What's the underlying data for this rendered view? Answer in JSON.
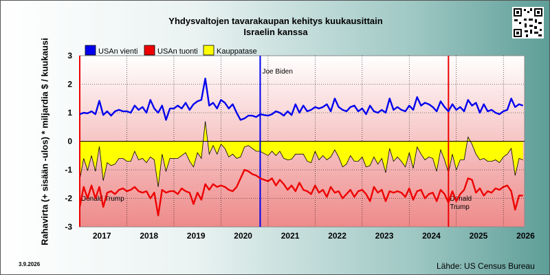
{
  "page": {
    "title_line1": "Yhdysvaltojen tavarakaupan kehitys kuukausittain",
    "title_line2": "Israelin kanssa",
    "date_stamp": "3.9.2026",
    "source": "Lähde: US Census Bureau",
    "qr_icon": "qr-code-icon"
  },
  "chart_data": {
    "type": "line",
    "ylabel": "Rahavirta (+ sisään -ulos) * miljardia $ / kuukausi",
    "ylim": [
      -3,
      3
    ],
    "yticks": [
      "3",
      "2",
      "1",
      "0",
      "-1",
      "-2",
      "-3"
    ],
    "xlim": [
      2017.0,
      2026.45
    ],
    "xticks": [
      "2017",
      "2018",
      "2019",
      "2020",
      "2021",
      "2022",
      "2023",
      "2024",
      "2025",
      "2026"
    ],
    "grid": true,
    "legend_position": "top-left",
    "colors": {
      "exports": "#0000ee",
      "imports": "#ee0000",
      "balance_fill": "#ffff00",
      "balance_line": "#000000"
    },
    "annotations": [
      {
        "date": "2017-01",
        "text": "Donald Trump",
        "color": "#ee0000"
      },
      {
        "date": "2020-11",
        "text": "Joe Biden",
        "color": "#0000ee"
      },
      {
        "date": "2024-11",
        "text": "Donald Trump",
        "color": "#ee0000"
      }
    ],
    "x": [
      "2017-01",
      "2017-02",
      "2017-03",
      "2017-04",
      "2017-05",
      "2017-06",
      "2017-07",
      "2017-08",
      "2017-09",
      "2017-10",
      "2017-11",
      "2017-12",
      "2018-01",
      "2018-02",
      "2018-03",
      "2018-04",
      "2018-05",
      "2018-06",
      "2018-07",
      "2018-08",
      "2018-09",
      "2018-10",
      "2018-11",
      "2018-12",
      "2019-01",
      "2019-02",
      "2019-03",
      "2019-04",
      "2019-05",
      "2019-06",
      "2019-07",
      "2019-08",
      "2019-09",
      "2019-10",
      "2019-11",
      "2019-12",
      "2020-01",
      "2020-02",
      "2020-03",
      "2020-04",
      "2020-05",
      "2020-06",
      "2020-07",
      "2020-08",
      "2020-09",
      "2020-10",
      "2020-11",
      "2020-12",
      "2021-01",
      "2021-02",
      "2021-03",
      "2021-04",
      "2021-05",
      "2021-06",
      "2021-07",
      "2021-08",
      "2021-09",
      "2021-10",
      "2021-11",
      "2021-12",
      "2022-01",
      "2022-02",
      "2022-03",
      "2022-04",
      "2022-05",
      "2022-06",
      "2022-07",
      "2022-08",
      "2022-09",
      "2022-10",
      "2022-11",
      "2022-12",
      "2023-01",
      "2023-02",
      "2023-03",
      "2023-04",
      "2023-05",
      "2023-06",
      "2023-07",
      "2023-08",
      "2023-09",
      "2023-10",
      "2023-11",
      "2023-12",
      "2024-01",
      "2024-02",
      "2024-03",
      "2024-04",
      "2024-05",
      "2024-06",
      "2024-07",
      "2024-08",
      "2024-09",
      "2024-10",
      "2024-11",
      "2024-12",
      "2025-01",
      "2025-02",
      "2025-03",
      "2025-04",
      "2025-05",
      "2025-06",
      "2025-07",
      "2025-08",
      "2025-09",
      "2025-10",
      "2025-11",
      "2025-12",
      "2026-01",
      "2026-02",
      "2026-03",
      "2026-04",
      "2026-05",
      "2026-06"
    ],
    "series": [
      {
        "name": "USAn vienti",
        "key": "exports",
        "values": [
          0.95,
          1.0,
          0.98,
          1.05,
          0.95,
          1.42,
          0.92,
          1.05,
          0.9,
          1.05,
          1.1,
          1.05,
          1.05,
          1.0,
          1.25,
          1.1,
          1.2,
          1.0,
          1.45,
          1.15,
          1.0,
          1.25,
          0.75,
          1.15,
          1.15,
          1.25,
          1.15,
          1.35,
          1.1,
          1.3,
          1.4,
          1.45,
          2.2,
          1.25,
          1.35,
          1.15,
          1.45,
          1.35,
          1.15,
          1.3,
          1.0,
          0.75,
          0.8,
          0.9,
          0.9,
          0.85,
          0.95,
          0.92,
          0.9,
          0.95,
          1.05,
          1.0,
          0.9,
          1.05,
          0.92,
          1.3,
          1.0,
          1.25,
          1.05,
          1.1,
          1.2,
          1.15,
          1.2,
          1.3,
          1.05,
          1.5,
          1.2,
          1.1,
          1.05,
          1.2,
          1.25,
          1.05,
          1.15,
          0.95,
          1.25,
          1.05,
          1.0,
          1.1,
          1.0,
          1.5,
          1.1,
          1.2,
          1.1,
          1.05,
          1.25,
          1.1,
          1.55,
          1.25,
          1.35,
          1.3,
          1.2,
          1.05,
          1.4,
          1.2,
          1.05,
          1.3,
          1.1,
          1.2,
          1.05,
          1.45,
          1.25,
          1.35,
          1.0,
          1.3,
          1.05,
          1.1,
          1.0,
          0.95,
          1.05,
          1.1,
          1.5,
          1.2,
          1.3,
          1.25
        ]
      },
      {
        "name": "USAn tuonti",
        "key": "imports",
        "values": [
          -2.3,
          -1.6,
          -2.0,
          -1.55,
          -2.0,
          -1.6,
          -2.3,
          -1.8,
          -1.75,
          -1.85,
          -1.7,
          -1.65,
          -1.75,
          -1.7,
          -1.6,
          -1.75,
          -1.8,
          -1.75,
          -2.0,
          -1.8,
          -2.6,
          -1.7,
          -1.8,
          -1.75,
          -1.75,
          -1.85,
          -1.65,
          -1.75,
          -1.8,
          -2.2,
          -1.8,
          -2.05,
          -1.5,
          -1.7,
          -1.5,
          -1.6,
          -1.55,
          -1.6,
          -1.7,
          -1.75,
          -1.6,
          -1.3,
          -1.0,
          -1.05,
          -1.15,
          -1.2,
          -1.3,
          -1.35,
          -1.4,
          -1.3,
          -1.55,
          -1.35,
          -1.5,
          -1.7,
          -1.55,
          -1.75,
          -1.45,
          -1.7,
          -1.75,
          -1.85,
          -1.55,
          -1.8,
          -1.7,
          -1.95,
          -1.6,
          -1.8,
          -1.75,
          -2.0,
          -1.85,
          -1.7,
          -1.95,
          -1.75,
          -1.7,
          -1.85,
          -2.1,
          -1.6,
          -1.8,
          -1.7,
          -2.1,
          -1.75,
          -1.8,
          -1.75,
          -1.8,
          -1.95,
          -1.65,
          -2.05,
          -1.75,
          -1.7,
          -2.0,
          -1.85,
          -1.8,
          -2.1,
          -1.7,
          -1.85,
          -2.15,
          -1.75,
          -2.1,
          -1.85,
          -1.7,
          -1.3,
          -1.35,
          -1.8,
          -1.65,
          -1.9,
          -1.75,
          -1.8,
          -1.65,
          -1.7,
          -1.6,
          -1.55,
          -1.75,
          -2.4,
          -1.9,
          -1.9
        ]
      },
      {
        "name": "Kauppatase",
        "key": "balance",
        "values": [
          -1.35,
          -0.6,
          -1.02,
          -0.5,
          -1.05,
          -0.18,
          -1.38,
          -0.75,
          -0.85,
          -0.8,
          -0.6,
          -0.6,
          -0.7,
          -0.7,
          -0.35,
          -0.65,
          -0.6,
          -0.75,
          -0.55,
          -0.65,
          -1.6,
          -0.45,
          -1.05,
          -0.6,
          -0.6,
          -0.6,
          -0.5,
          -0.4,
          -0.7,
          -0.9,
          -0.4,
          -0.6,
          0.7,
          -0.45,
          -0.15,
          -0.45,
          -0.1,
          -0.25,
          -0.55,
          -0.45,
          -0.6,
          -0.55,
          -0.2,
          -0.15,
          -0.25,
          -0.35,
          -0.35,
          -0.43,
          -0.5,
          -0.35,
          -0.5,
          -0.35,
          -0.6,
          -0.65,
          -0.63,
          -0.45,
          -0.45,
          -0.45,
          -0.7,
          -0.75,
          -0.35,
          -0.65,
          -0.5,
          -0.65,
          -0.55,
          -0.3,
          -0.55,
          -0.9,
          -0.8,
          -0.5,
          -0.7,
          -0.7,
          -0.55,
          -0.9,
          -0.85,
          -0.55,
          -0.8,
          -0.6,
          -1.1,
          -0.25,
          -0.7,
          -0.55,
          -0.7,
          -0.9,
          -0.4,
          -0.95,
          -0.2,
          -0.45,
          -0.65,
          -0.55,
          -0.6,
          -1.05,
          -0.3,
          -0.65,
          -1.1,
          -0.45,
          -1.0,
          -0.65,
          -0.65,
          0.15,
          -0.1,
          -0.45,
          -0.65,
          -0.6,
          -0.7,
          -0.7,
          -0.65,
          -0.75,
          -0.55,
          -0.45,
          -0.25,
          -1.2,
          -0.6,
          -0.65
        ]
      }
    ]
  }
}
